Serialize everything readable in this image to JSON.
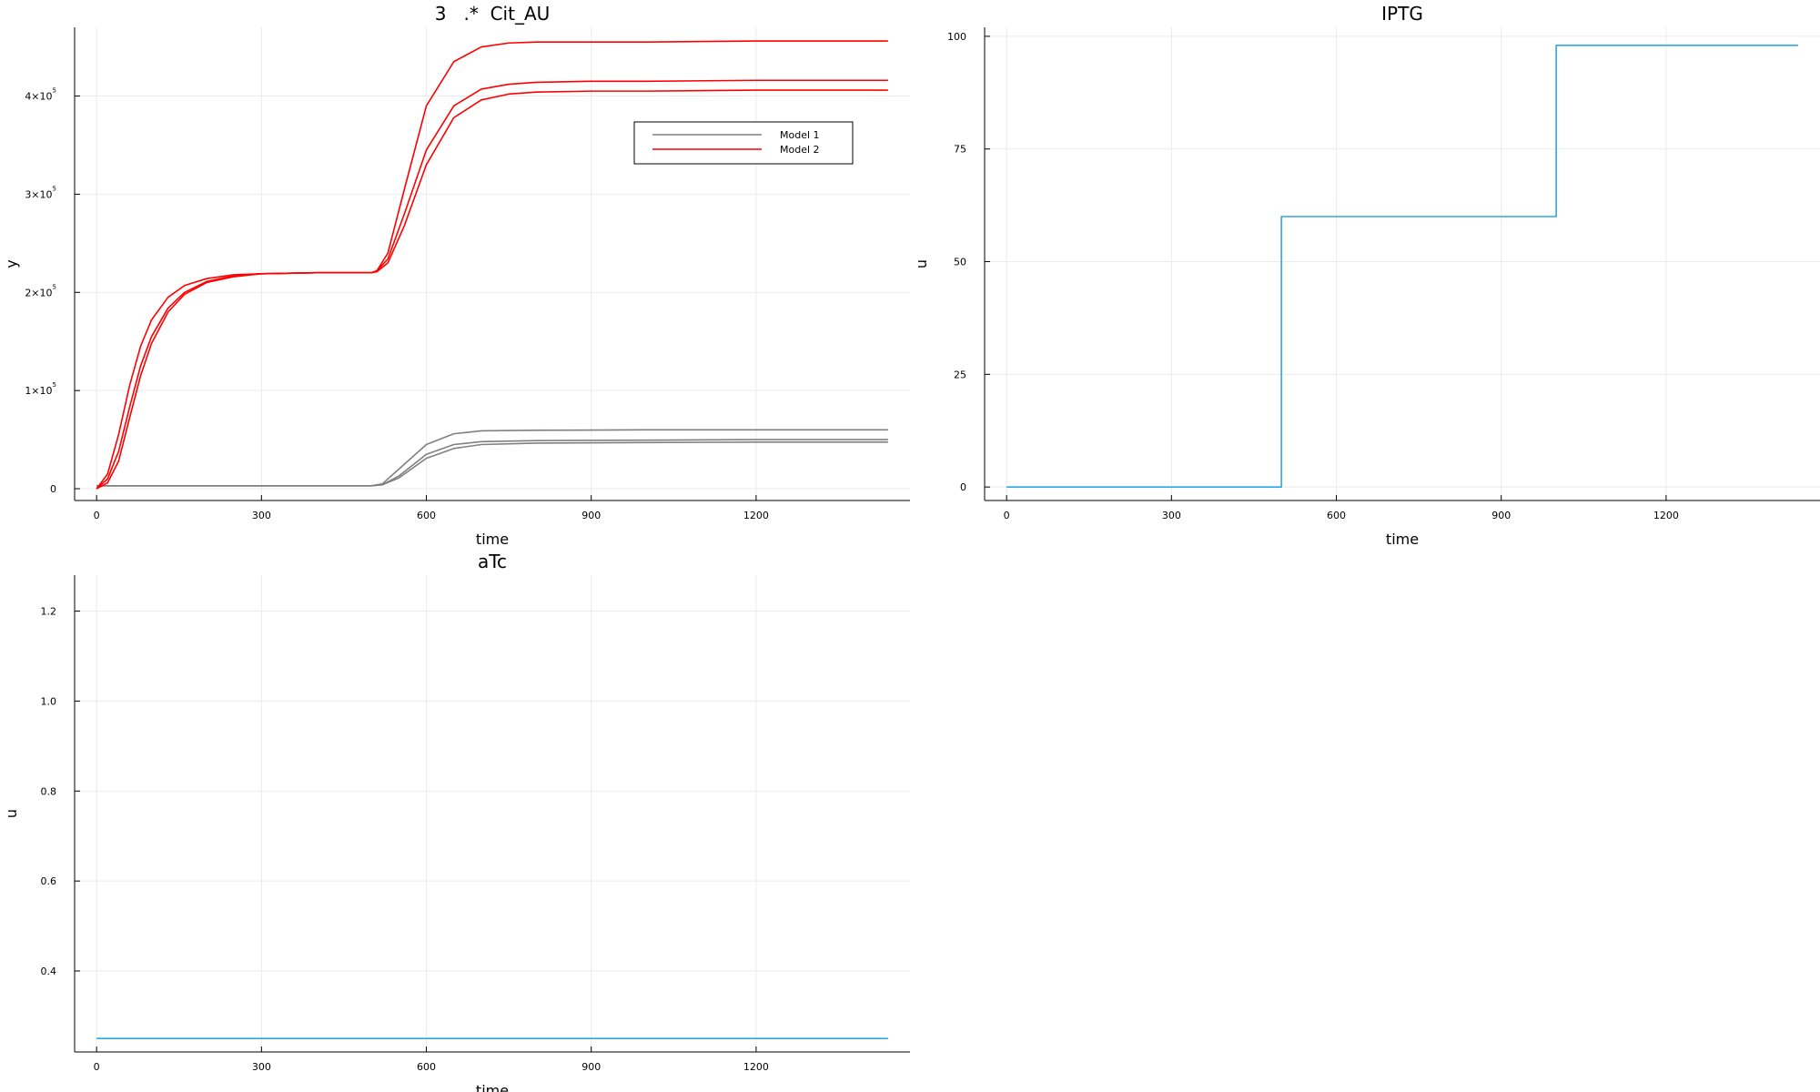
{
  "chart_data": [
    {
      "type": "line",
      "title": "3   .*  Cit_AU",
      "xlabel": "time",
      "ylabel": "y",
      "xlim": [
        -40,
        1480
      ],
      "ylim": [
        -12000,
        470000
      ],
      "xticks": [
        0,
        300,
        600,
        900,
        1200
      ],
      "xtick_labels": [
        "0",
        "300",
        "600",
        "900",
        "1200"
      ],
      "yticks": [
        0,
        100000,
        200000,
        300000,
        400000
      ],
      "ytick_labels": [
        {
          "base": "0",
          "exp": ""
        },
        {
          "base": "1×10",
          "exp": "5"
        },
        {
          "base": "2×10",
          "exp": "5"
        },
        {
          "base": "3×10",
          "exp": "5"
        },
        {
          "base": "4×10",
          "exp": "5"
        }
      ],
      "grid": true,
      "legend": {
        "placement": "top-right",
        "entries": [
          {
            "name": "Model 1",
            "color": "#808080"
          },
          {
            "name": "Model 2",
            "color": "#ff0000"
          }
        ]
      },
      "series": [
        {
          "name": "Model 1",
          "color": "#808080",
          "x": [
            0,
            20,
            100,
            300,
            500,
            520,
            550,
            600,
            650,
            700,
            800,
            1000,
            1200,
            1440
          ],
          "y": [
            3000,
            3000,
            3000,
            3000,
            3000,
            5000,
            20000,
            45000,
            56000,
            59000,
            59500,
            60000,
            60000,
            60000
          ]
        },
        {
          "name": "Model 1",
          "color": "#808080",
          "x": [
            0,
            20,
            100,
            300,
            500,
            520,
            550,
            600,
            650,
            700,
            800,
            1000,
            1200,
            1440
          ],
          "y": [
            3000,
            3000,
            3000,
            3000,
            3000,
            4000,
            13000,
            35000,
            45000,
            48000,
            49000,
            49500,
            50000,
            50000
          ]
        },
        {
          "name": "Model 1",
          "color": "#808080",
          "x": [
            0,
            20,
            100,
            300,
            500,
            520,
            550,
            600,
            650,
            700,
            800,
            1000,
            1200,
            1440
          ],
          "y": [
            3000,
            3000,
            3000,
            3000,
            3000,
            4000,
            11000,
            31000,
            41000,
            45000,
            46500,
            47000,
            47500,
            47500
          ]
        },
        {
          "name": "Model 2",
          "color": "#ff0000",
          "x": [
            0,
            20,
            40,
            60,
            80,
            100,
            130,
            160,
            200,
            250,
            300,
            400,
            500,
            510,
            530,
            560,
            600,
            650,
            700,
            750,
            800,
            900,
            1000,
            1200,
            1440
          ],
          "y": [
            0,
            15000,
            55000,
            105000,
            145000,
            172000,
            195000,
            207000,
            214000,
            218000,
            219000,
            220000,
            220000,
            222000,
            240000,
            305000,
            390000,
            435000,
            450000,
            454000,
            455000,
            455000,
            455000,
            456000,
            456000
          ]
        },
        {
          "name": "Model 2",
          "color": "#ff0000",
          "x": [
            0,
            20,
            40,
            60,
            80,
            100,
            130,
            160,
            200,
            250,
            300,
            400,
            500,
            510,
            530,
            560,
            600,
            650,
            700,
            750,
            800,
            900,
            1000,
            1200,
            1440
          ],
          "y": [
            0,
            10000,
            38000,
            83000,
            125000,
            155000,
            184000,
            200000,
            211000,
            217000,
            219000,
            220000,
            220000,
            222000,
            234000,
            280000,
            345000,
            390000,
            407000,
            412000,
            414000,
            415000,
            415000,
            416000,
            416000
          ]
        },
        {
          "name": "Model 2",
          "color": "#ff0000",
          "x": [
            0,
            20,
            40,
            60,
            80,
            100,
            130,
            160,
            200,
            250,
            300,
            400,
            500,
            510,
            530,
            560,
            600,
            650,
            700,
            750,
            800,
            900,
            1000,
            1200,
            1440
          ],
          "y": [
            0,
            6000,
            28000,
            72000,
            115000,
            148000,
            180000,
            198000,
            210000,
            216000,
            219000,
            220000,
            220000,
            221000,
            230000,
            268000,
            330000,
            378000,
            396000,
            402000,
            404000,
            405000,
            405000,
            406000,
            406000
          ]
        }
      ]
    },
    {
      "type": "line",
      "title": "IPTG",
      "xlabel": "time",
      "ylabel": "u",
      "xlim": [
        -40,
        1480
      ],
      "ylim": [
        -3,
        102
      ],
      "xticks": [
        0,
        300,
        600,
        900,
        1200
      ],
      "xtick_labels": [
        "0",
        "300",
        "600",
        "900",
        "1200"
      ],
      "yticks": [
        0,
        25,
        50,
        75,
        100
      ],
      "ytick_labels": [
        "0",
        "25",
        "50",
        "75",
        "100"
      ],
      "grid": true,
      "series": [
        {
          "color": "#2ea8e0",
          "x": [
            0,
            500,
            500,
            1000,
            1000,
            1440
          ],
          "y": [
            0,
            0,
            60,
            60,
            98,
            98
          ]
        }
      ]
    },
    {
      "type": "line",
      "title": "aTc",
      "xlabel": "time",
      "ylabel": "u",
      "xlim": [
        -40,
        1480
      ],
      "ylim": [
        0.22,
        1.28
      ],
      "xticks": [
        0,
        300,
        600,
        900,
        1200
      ],
      "xtick_labels": [
        "0",
        "300",
        "600",
        "900",
        "1200"
      ],
      "yticks": [
        0.4,
        0.6,
        0.8,
        1.0,
        1.2
      ],
      "ytick_labels": [
        "0.4",
        "0.6",
        "0.8",
        "1.0",
        "1.2"
      ],
      "grid": true,
      "series": [
        {
          "color": "#2ea8e0",
          "x": [
            0,
            1440
          ],
          "y": [
            0.25,
            0.25
          ]
        }
      ]
    }
  ]
}
